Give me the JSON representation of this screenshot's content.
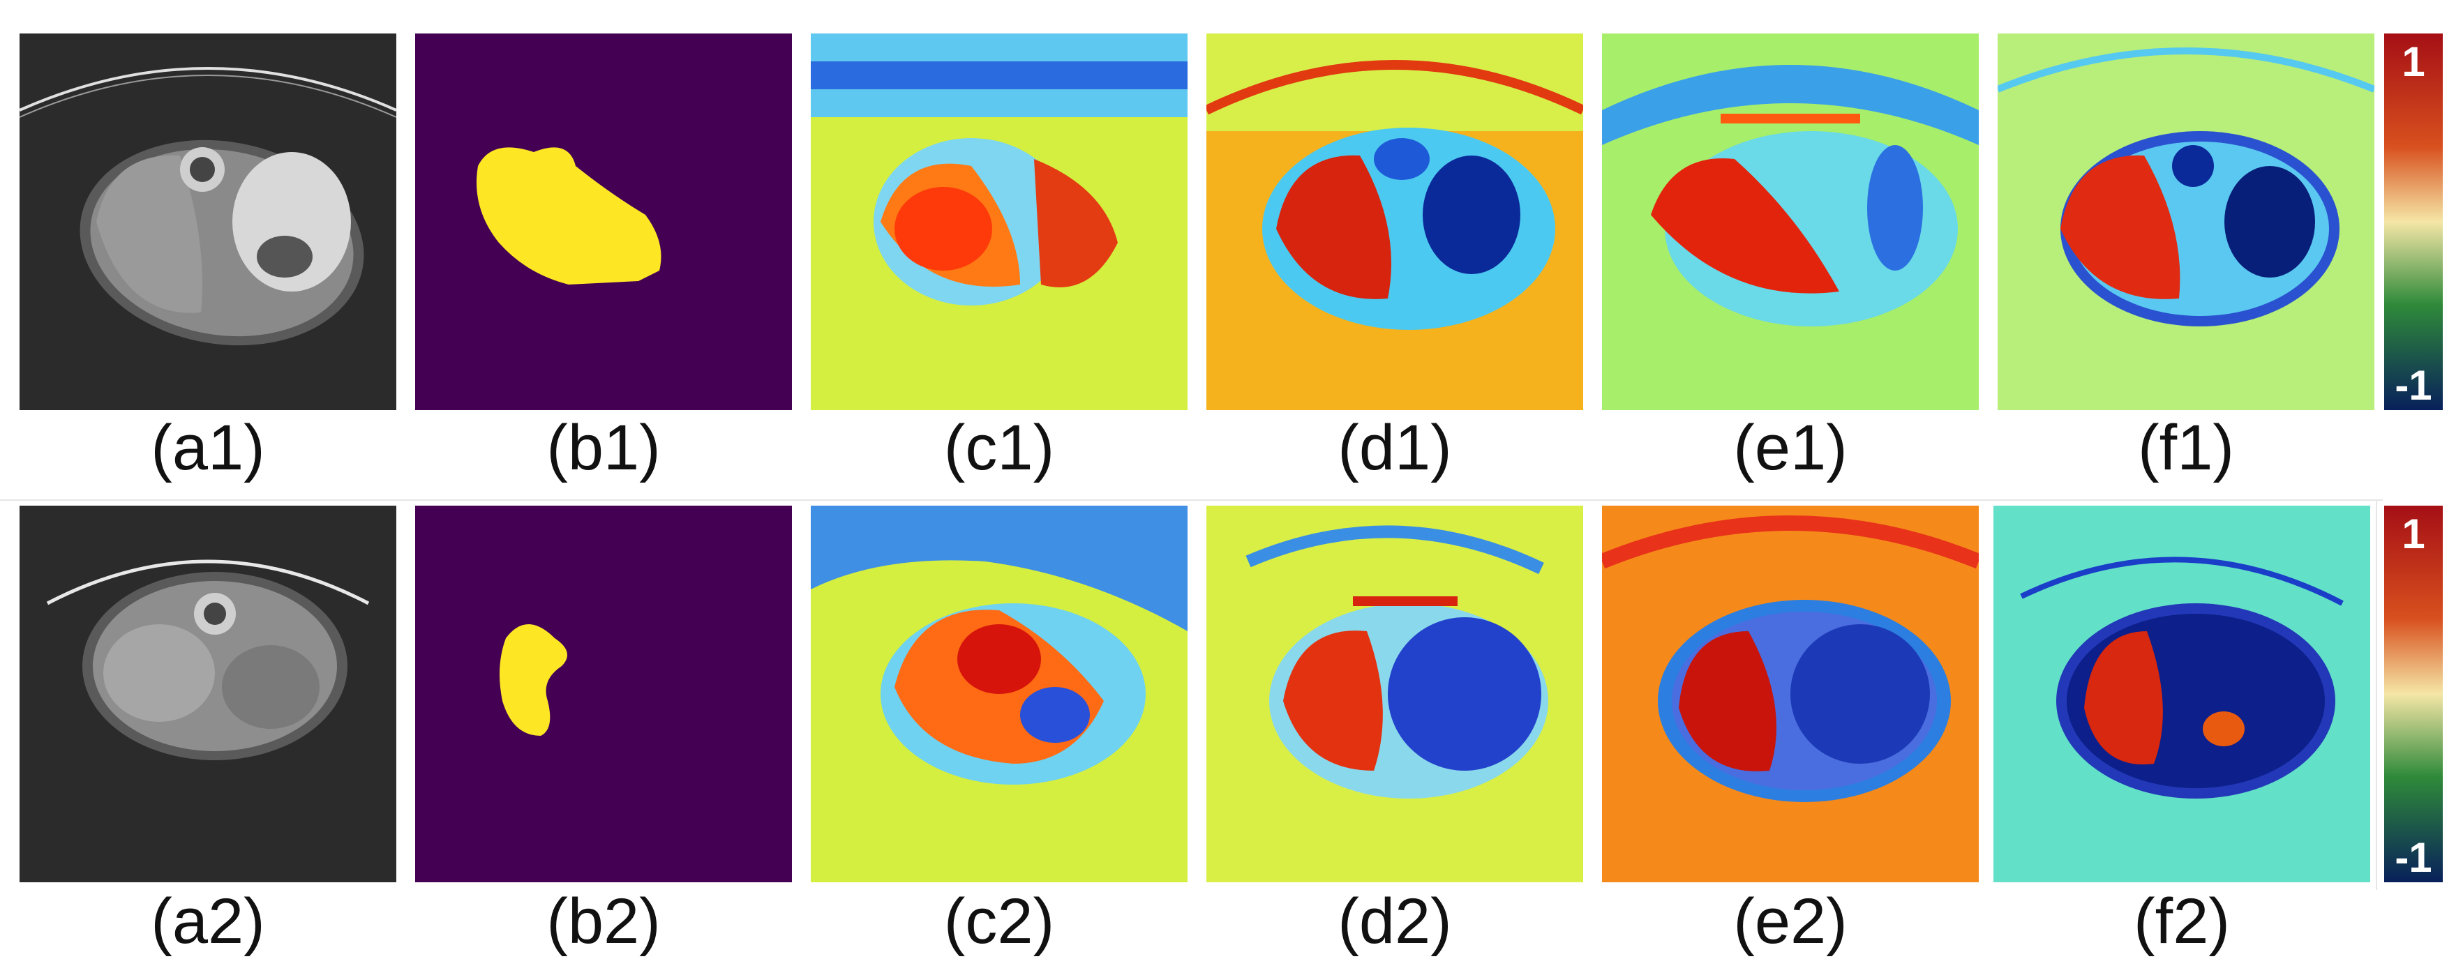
{
  "row1": {
    "labels": [
      "(a1)",
      "(b1)",
      "(c1)",
      "(d1)",
      "(e1)",
      "(f1)"
    ]
  },
  "row2": {
    "labels": [
      "(a2)",
      "(b2)",
      "(c2)",
      "(d2)",
      "(e2)",
      "(f2)"
    ]
  },
  "colorbar": {
    "max_label": "1",
    "min_label": "-1",
    "colors": [
      "#a50f15",
      "#d8501e",
      "#f5e6a6",
      "#2f8a3a",
      "#08205a"
    ]
  },
  "colors": {
    "ct_background": "#2e2e2e",
    "mask_background": "#440154",
    "mask_foreground": "#fde725",
    "jet_low": "#00007f",
    "jet_high": "#ff1400",
    "map_background": "#d4ef3f"
  }
}
